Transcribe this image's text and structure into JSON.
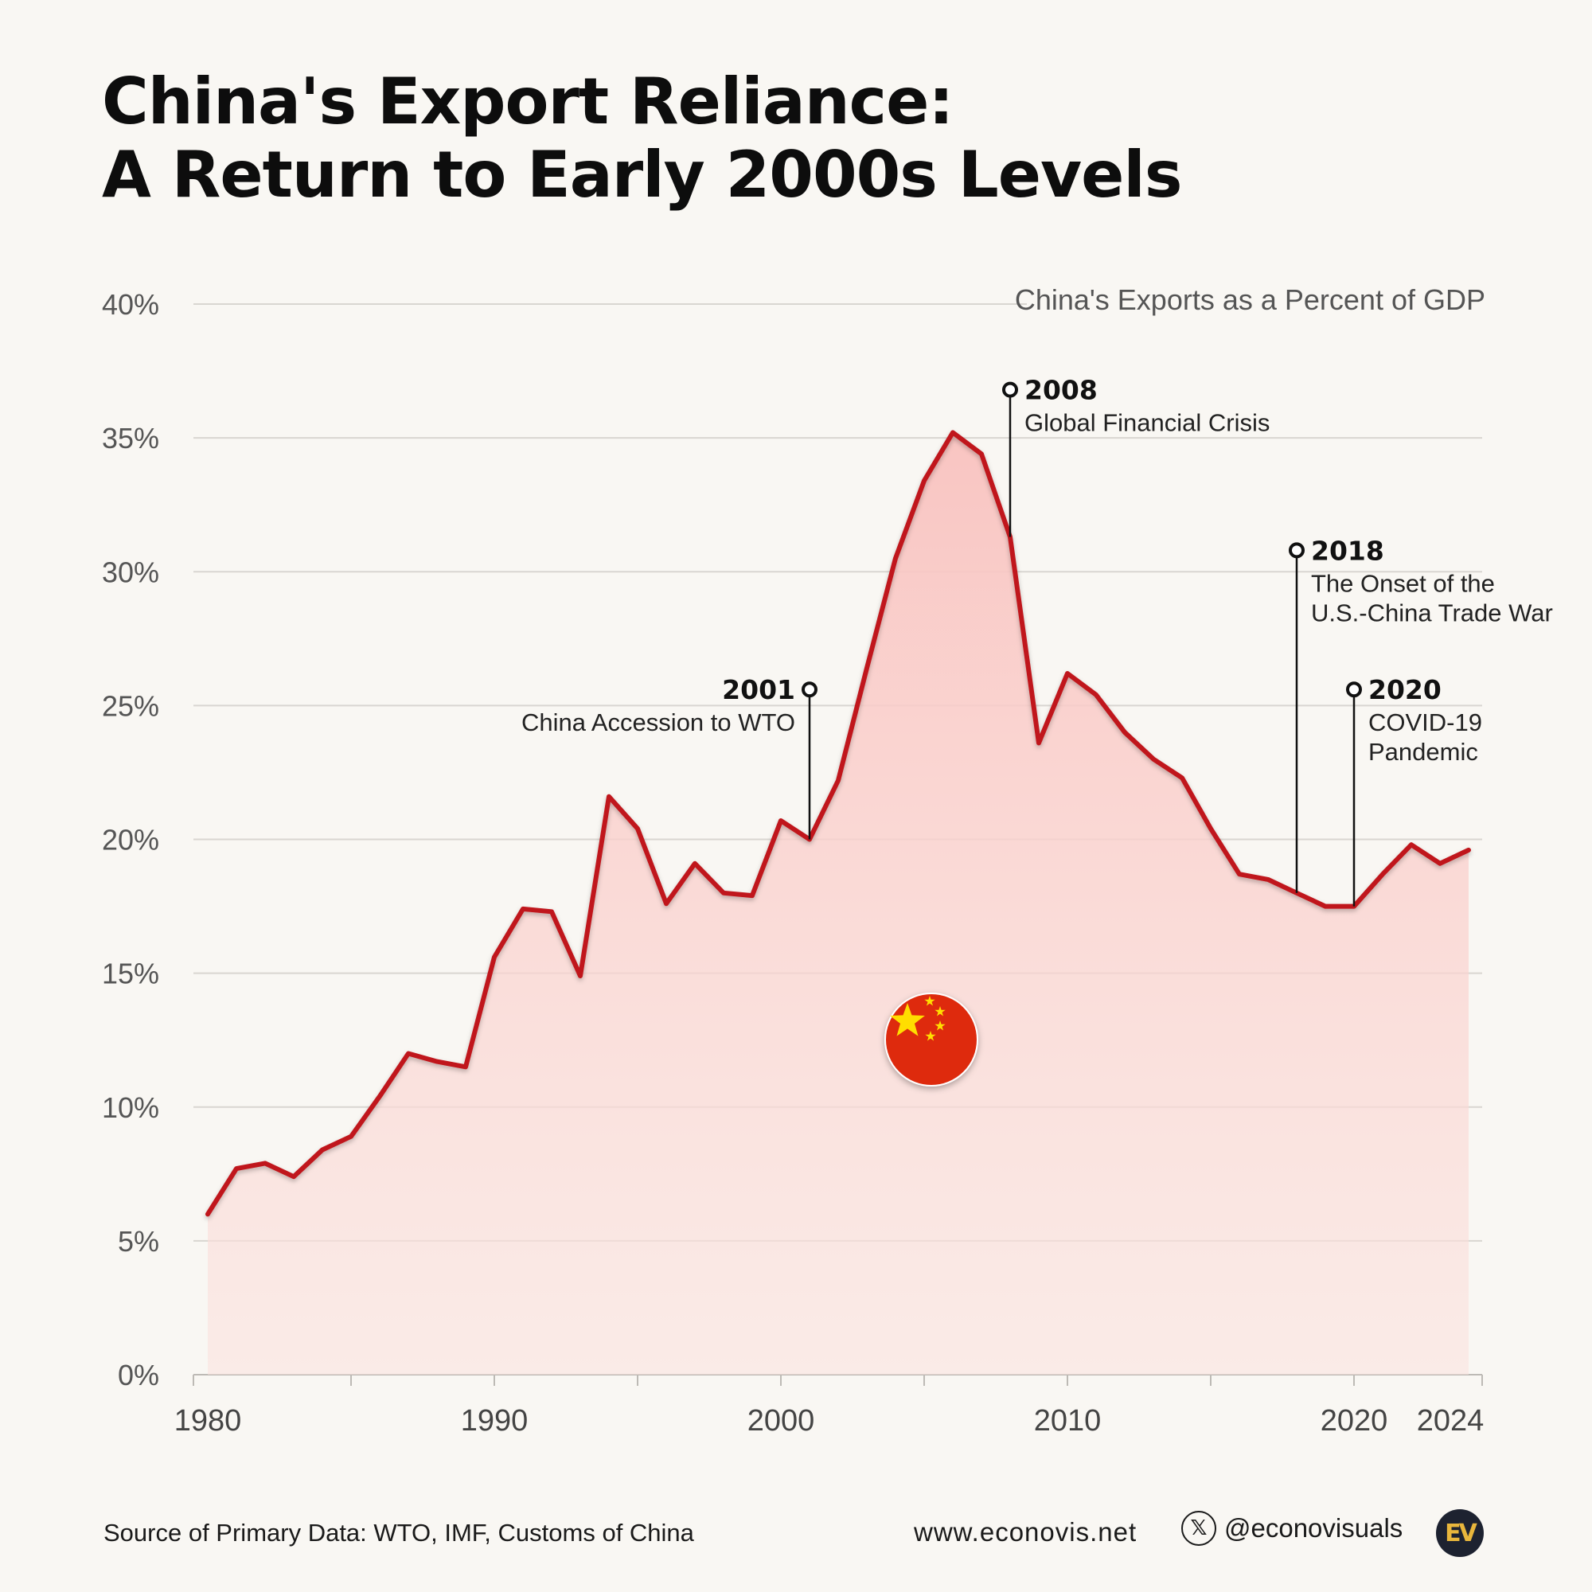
{
  "title": {
    "line1": "China's Export Reliance:",
    "line2": "A Return to Early 2000s Levels"
  },
  "chart_data": {
    "type": "area",
    "title": "China's Export Reliance: A Return to Early 2000s Levels",
    "series_label": "China's Exports as a Percent of GDP",
    "xlabel": "",
    "ylabel": "",
    "xlim": [
      1980,
      2024
    ],
    "ylim": [
      0,
      40
    ],
    "y_ticks": [
      0,
      5,
      10,
      15,
      20,
      25,
      30,
      35,
      40
    ],
    "y_tick_labels": [
      "0%",
      "5%",
      "10%",
      "15%",
      "20%",
      "25%",
      "30%",
      "35%",
      "40%"
    ],
    "x_major_ticks": [
      1980,
      1990,
      2000,
      2010,
      2020,
      2024
    ],
    "x_tick_labels": [
      "1980",
      "1990",
      "2000",
      "2010",
      "2020",
      "2024"
    ],
    "x_minor_ticks": [
      1985,
      1995,
      2005,
      2015
    ],
    "grid": true,
    "line_color": "#c0161b",
    "fill_color": "#f9c9c6",
    "x": [
      1980,
      1981,
      1982,
      1983,
      1984,
      1985,
      1986,
      1987,
      1988,
      1989,
      1990,
      1991,
      1992,
      1993,
      1994,
      1995,
      1996,
      1997,
      1998,
      1999,
      2000,
      2001,
      2002,
      2003,
      2004,
      2005,
      2006,
      2007,
      2008,
      2009,
      2010,
      2011,
      2012,
      2013,
      2014,
      2015,
      2016,
      2017,
      2018,
      2019,
      2020,
      2021,
      2022,
      2023,
      2024
    ],
    "values": [
      6.0,
      7.7,
      7.9,
      7.4,
      8.4,
      8.9,
      10.4,
      12.0,
      11.7,
      11.5,
      15.6,
      17.4,
      17.3,
      14.9,
      21.6,
      20.4,
      17.6,
      19.1,
      18.0,
      17.9,
      20.7,
      20.0,
      22.2,
      26.4,
      30.5,
      33.4,
      35.2,
      34.4,
      31.3,
      23.6,
      26.2,
      25.4,
      24.0,
      23.0,
      22.3,
      20.4,
      18.7,
      18.5,
      18.0,
      17.5,
      17.5,
      18.7,
      19.8,
      19.1,
      19.6
    ],
    "annotations": [
      {
        "x": 2001,
        "y": 20.0,
        "label_y": 25.6,
        "year": "2001",
        "text": [
          "China Accession to WTO"
        ],
        "side": "left"
      },
      {
        "x": 2008,
        "y": 31.3,
        "label_y": 36.8,
        "year": "2008",
        "text": [
          "Global Financial Crisis"
        ],
        "side": "right"
      },
      {
        "x": 2018,
        "y": 18.0,
        "label_y": 30.8,
        "year": "2018",
        "text": [
          "The Onset of the",
          "U.S.-China Trade War"
        ],
        "side": "right"
      },
      {
        "x": 2020,
        "y": 17.5,
        "label_y": 25.6,
        "year": "2020",
        "text": [
          "COVID-19",
          "Pandemic"
        ],
        "side": "right"
      }
    ]
  },
  "footer": {
    "source": "Source of Primary Data: WTO, IMF, Customs of China",
    "website": "www.econovis.net",
    "social_icon": "x-logo-icon",
    "social_handle": "@econovisuals",
    "logo_text": "EV",
    "logo_icon": "econovis-logo"
  },
  "flag_icon": "china-flag-icon",
  "colors": {
    "background": "#f9f7f3",
    "line": "#c0161b",
    "fill": "#f9c9c6",
    "flag_red": "#de2910",
    "flag_yellow": "#ffde00"
  }
}
